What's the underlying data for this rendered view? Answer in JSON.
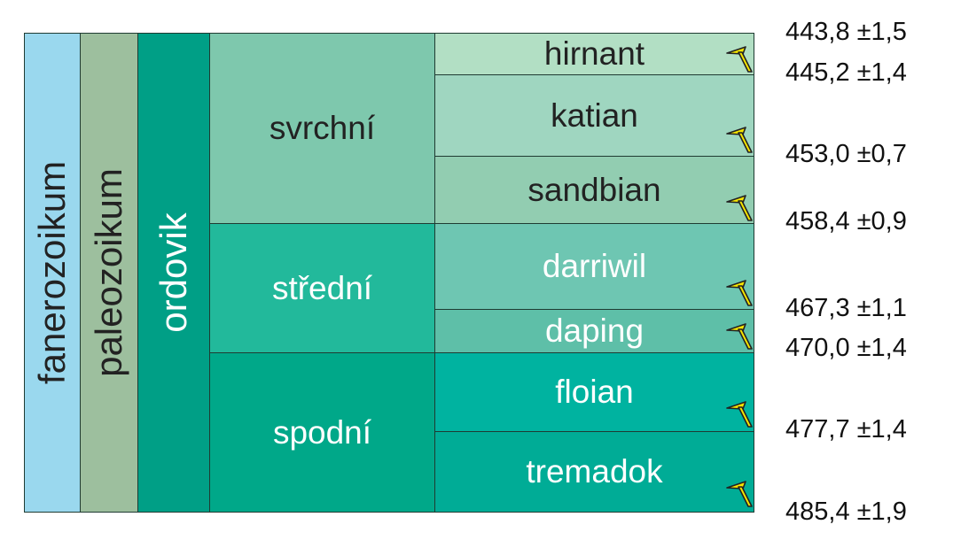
{
  "eon": "fanerozoikum",
  "era": "paleozoikum",
  "period": "ordovik",
  "epochs": [
    {
      "label": "svrchní"
    },
    {
      "label": "střední"
    },
    {
      "label": "spodní"
    }
  ],
  "stages": [
    {
      "label": "hirnant"
    },
    {
      "label": "katian"
    },
    {
      "label": "sandbian"
    },
    {
      "label": "darriwil"
    },
    {
      "label": "daping"
    },
    {
      "label": "floian"
    },
    {
      "label": "tremadok"
    }
  ],
  "ages": [
    "443,8 ±1,5",
    "445,2 ±1,4",
    "453,0 ±0,7",
    "458,4 ±0,9",
    "467,3 ±1,1",
    "470,0 ±1,4",
    "477,7 ±1,4",
    "485,4 ±1,9"
  ],
  "gssp_marker_icon": "golden-spike-icon",
  "colors": {
    "eon": "#9ad8ee",
    "era": "#9dbf9e",
    "period": "#009f86",
    "epoch_upper": "#7ec8ad",
    "epoch_middle": "#22b99b",
    "epoch_lower": "#00a889",
    "hirnant": "#b2dfc4",
    "katian": "#9fd6c0",
    "sandbian": "#92cdb1",
    "darriwil": "#6ec6b2",
    "daping": "#5ebfa8",
    "floian": "#00b3a0",
    "tremadok": "#00ac96"
  }
}
